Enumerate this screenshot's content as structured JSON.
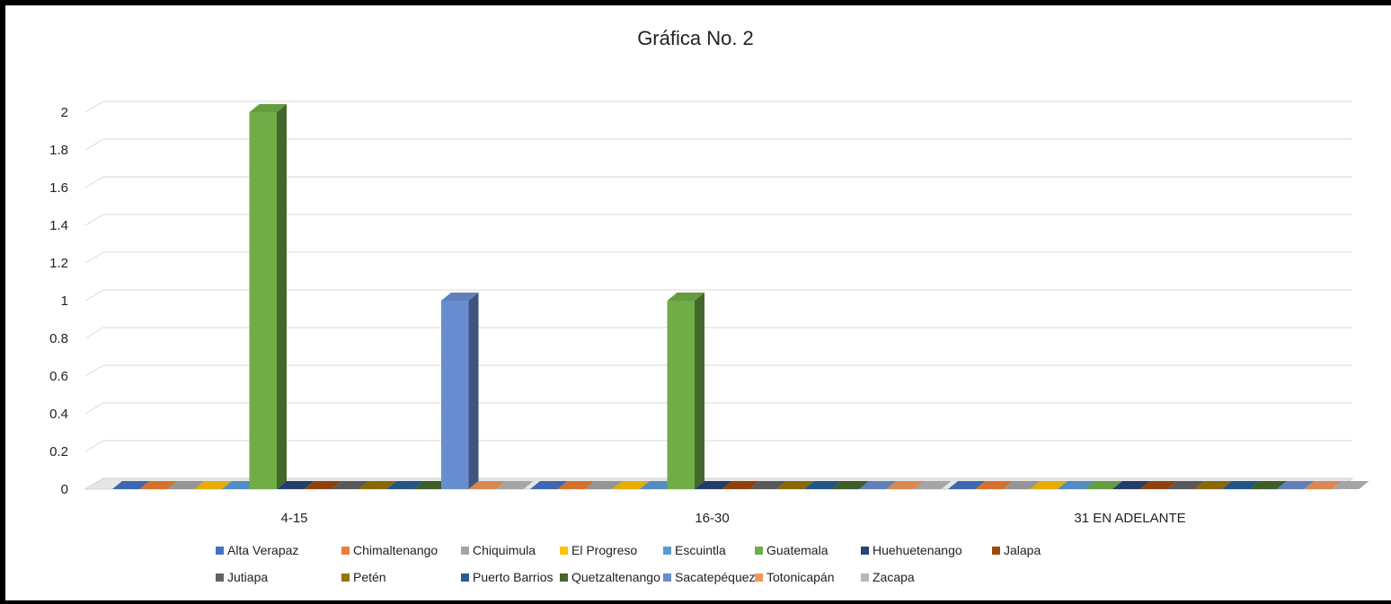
{
  "chart_data": {
    "type": "bar",
    "title": "Gráfica No. 2",
    "xlabel": "",
    "ylabel": "",
    "ylim": [
      0,
      2
    ],
    "yticks": [
      "0",
      "0.2",
      "0.4",
      "0.6",
      "0.8",
      "1",
      "1.2",
      "1.4",
      "1.6",
      "1.8",
      "2"
    ],
    "categories": [
      "4-15",
      "16-30",
      "31 EN ADELANTE"
    ],
    "grid": true,
    "legend_position": "bottom",
    "series": [
      {
        "name": "Alta Verapaz",
        "color": "#4472C4",
        "values": [
          0,
          0,
          0
        ]
      },
      {
        "name": "Chimaltenango",
        "color": "#ED7D31",
        "values": [
          0,
          0,
          0
        ]
      },
      {
        "name": "Chiquimula",
        "color": "#A5A5A5",
        "values": [
          0,
          0,
          0
        ]
      },
      {
        "name": "El Progreso",
        "color": "#FFC000",
        "values": [
          0,
          0,
          0
        ]
      },
      {
        "name": "Escuintla",
        "color": "#5B9BD5",
        "values": [
          0,
          0,
          0
        ]
      },
      {
        "name": "Guatemala",
        "color": "#70AD47",
        "values": [
          2,
          1,
          0
        ]
      },
      {
        "name": "Huehuetenango",
        "color": "#264478",
        "values": [
          0,
          0,
          0
        ]
      },
      {
        "name": "Jalapa",
        "color": "#9E480E",
        "values": [
          0,
          0,
          0
        ]
      },
      {
        "name": "Jutiapa",
        "color": "#636363",
        "values": [
          0,
          0,
          0
        ]
      },
      {
        "name": "Petén",
        "color": "#997300",
        "values": [
          0,
          0,
          0
        ]
      },
      {
        "name": "Puerto Barrios",
        "color": "#255E91",
        "values": [
          0,
          0,
          0
        ]
      },
      {
        "name": "Quetzaltenango",
        "color": "#43682B",
        "values": [
          0,
          0,
          0
        ]
      },
      {
        "name": "Sacatepéquez",
        "color": "#698ED0",
        "values": [
          1,
          0,
          0
        ]
      },
      {
        "name": "Totonicapán",
        "color": "#F1975A",
        "values": [
          0,
          0,
          0
        ]
      },
      {
        "name": "Zacapa",
        "color": "#B7B7B7",
        "values": [
          0,
          0,
          0
        ]
      }
    ]
  }
}
